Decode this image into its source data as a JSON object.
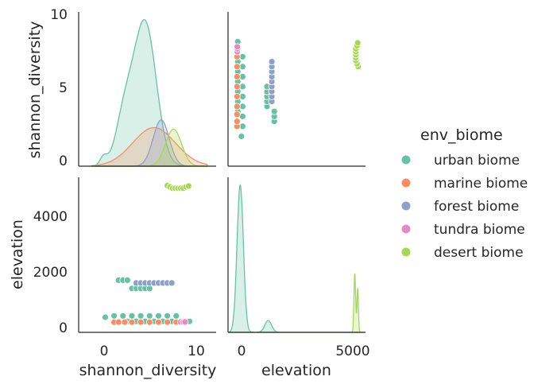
{
  "chart_data": {
    "type": "pairplot",
    "variables": [
      "shannon_diversity",
      "elevation"
    ],
    "axis_labels": {
      "x": [
        "shannon_diversity",
        "elevation"
      ],
      "y": [
        "shannon_diversity",
        "elevation"
      ]
    },
    "legend": {
      "title": "env_biome",
      "placement": "right"
    },
    "series": [
      {
        "name": "urban biome",
        "color": "#66c2a5"
      },
      {
        "name": "marine biome",
        "color": "#fc8d62"
      },
      {
        "name": "forest biome",
        "color": "#8da0cb"
      },
      {
        "name": "tundra biome",
        "color": "#e78ac3"
      },
      {
        "name": "desert biome",
        "color": "#a6d854"
      }
    ],
    "axes": {
      "shannon_diversity": {
        "lim": [
          -3,
          12.5
        ],
        "ticks": [
          "0",
          "5",
          "10"
        ],
        "tick_values": [
          0,
          5,
          10
        ]
      },
      "elevation": {
        "lim": [
          -250,
          5400
        ],
        "ticks_x": [
          "0",
          "5000"
        ],
        "tick_values_x": [
          0,
          5000
        ],
        "ticks_y": [
          "0",
          "2000",
          "4000"
        ],
        "tick_values_y": [
          0,
          2000,
          4000
        ]
      }
    },
    "kde_shannon_diversity": [
      {
        "series": "urban biome",
        "center": 4.5,
        "peak_height_frac": 0.95
      },
      {
        "series": "marine biome",
        "center": 5.5,
        "peak_height_frac": 0.25
      },
      {
        "series": "forest biome",
        "center": 6.5,
        "peak_height_frac": 0.3
      },
      {
        "series": "desert biome",
        "center": 7.5,
        "peak_height_frac": 0.24
      }
    ],
    "kde_elevation": [
      {
        "series": "urban biome",
        "peak_value": 300,
        "secondary_peak": 1400
      },
      {
        "series": "desert biome",
        "peak_value": 5000
      }
    ],
    "points": {
      "urban biome": [
        [
          0,
          300
        ],
        [
          1.5,
          1650
        ],
        [
          2,
          1650
        ],
        [
          2.5,
          1650
        ],
        [
          3,
          1350
        ],
        [
          3.5,
          1350
        ],
        [
          4,
          1350
        ],
        [
          4.5,
          1350
        ],
        [
          5,
          1350
        ],
        [
          1,
          350
        ],
        [
          2,
          350
        ],
        [
          3,
          350
        ],
        [
          4,
          350
        ],
        [
          5,
          350
        ],
        [
          6,
          350
        ],
        [
          7,
          350
        ],
        [
          8,
          350
        ],
        [
          9.5,
          150
        ],
        [
          1.5,
          150
        ],
        [
          2.5,
          150
        ],
        [
          3.5,
          150
        ],
        [
          4.5,
          150
        ],
        [
          5.5,
          150
        ],
        [
          6.5,
          150
        ],
        [
          7.5,
          150
        ]
      ],
      "marine biome": [
        [
          1,
          120
        ],
        [
          1.5,
          120
        ],
        [
          2.2,
          120
        ],
        [
          3,
          120
        ],
        [
          4,
          120
        ],
        [
          5,
          120
        ],
        [
          6,
          120
        ],
        [
          7,
          120
        ],
        [
          8,
          120
        ],
        [
          8.5,
          120
        ]
      ],
      "forest biome": [
        [
          3.5,
          1550
        ],
        [
          4,
          1550
        ],
        [
          4.5,
          1550
        ],
        [
          5,
          1550
        ],
        [
          5.5,
          1550
        ],
        [
          6,
          1550
        ],
        [
          6.5,
          1550
        ],
        [
          7,
          1550
        ],
        [
          7.5,
          1550
        ]
      ],
      "tundra biome": [
        [
          8.5,
          130
        ],
        [
          8.8,
          130
        ],
        [
          9,
          130
        ]
      ],
      "desert biome": [
        [
          7,
          5100
        ],
        [
          7.3,
          5050
        ],
        [
          7.6,
          5000
        ],
        [
          7.9,
          5000
        ],
        [
          8.2,
          5000
        ],
        [
          8.5,
          5000
        ],
        [
          8.8,
          5000
        ],
        [
          9.1,
          5050
        ],
        [
          9.4,
          5080
        ]
      ]
    }
  }
}
